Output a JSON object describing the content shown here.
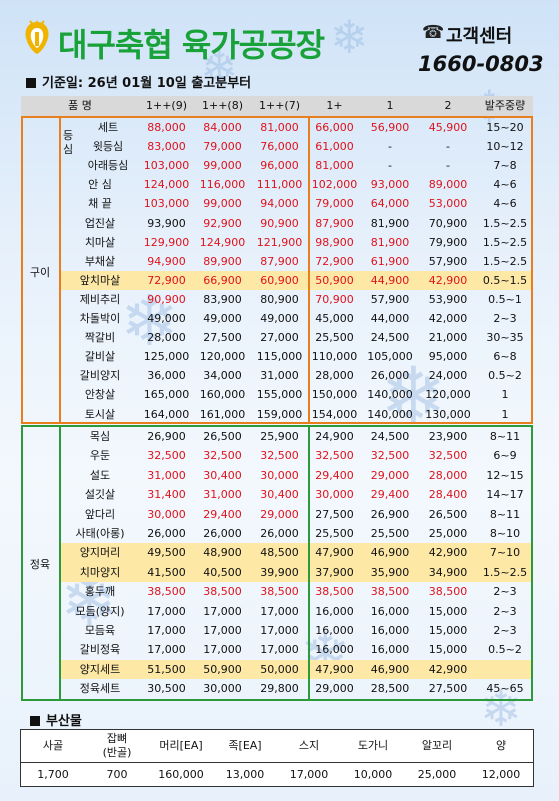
{
  "header": {
    "title": "대구축협 육가공공장",
    "customer_center_label": "고객센터",
    "phone": "1660-0803",
    "date_line": "기준일: 26년 01월 10일 출고분부터",
    "brand_color": "#1aa23a",
    "logo_color": "#f0b400"
  },
  "table": {
    "columns": [
      "품  명",
      "1++(9)",
      "1++(8)",
      "1++(7)",
      "1+",
      "1",
      "2",
      "발주중량"
    ],
    "groups": {
      "gui": "구이",
      "jeong": "정육",
      "sub": "등심"
    },
    "gui_rows": [
      {
        "name": "세트",
        "vals": [
          "88,000",
          "84,000",
          "81,000",
          "66,000",
          "56,900",
          "45,900"
        ],
        "weight": "15~20",
        "red": [
          1,
          1,
          1,
          1,
          1,
          1
        ],
        "hl": false
      },
      {
        "name": "윗등심",
        "vals": [
          "83,000",
          "79,000",
          "76,000",
          "61,000",
          "-",
          "-"
        ],
        "weight": "10~12",
        "red": [
          1,
          1,
          1,
          1,
          0,
          0
        ],
        "hl": false
      },
      {
        "name": "아래등심",
        "vals": [
          "103,000",
          "99,000",
          "96,000",
          "81,000",
          "-",
          "-"
        ],
        "weight": "7~8",
        "red": [
          1,
          1,
          1,
          1,
          0,
          0
        ],
        "hl": false
      },
      {
        "name": "안  심",
        "vals": [
          "124,000",
          "116,000",
          "111,000",
          "102,000",
          "93,000",
          "89,000"
        ],
        "weight": "4~6",
        "red": [
          1,
          1,
          1,
          1,
          1,
          1
        ],
        "hl": false
      },
      {
        "name": "채  끝",
        "vals": [
          "103,000",
          "99,000",
          "94,000",
          "79,000",
          "64,000",
          "53,000"
        ],
        "weight": "4~6",
        "red": [
          1,
          1,
          1,
          1,
          1,
          1
        ],
        "hl": false
      },
      {
        "name": "업진살",
        "vals": [
          "93,900",
          "92,900",
          "90,900",
          "87,900",
          "81,900",
          "70,900"
        ],
        "weight": "1.5~2.5",
        "red": [
          0,
          1,
          1,
          1,
          0,
          0
        ],
        "hl": false
      },
      {
        "name": "치마살",
        "vals": [
          "129,900",
          "124,900",
          "121,900",
          "98,900",
          "81,900",
          "79,900"
        ],
        "weight": "1.5~2.5",
        "red": [
          1,
          1,
          1,
          1,
          1,
          0
        ],
        "hl": false
      },
      {
        "name": "부채살",
        "vals": [
          "94,900",
          "89,900",
          "87,900",
          "72,900",
          "61,900",
          "57,900"
        ],
        "weight": "1.5~2.5",
        "red": [
          1,
          1,
          1,
          1,
          1,
          0
        ],
        "hl": false
      },
      {
        "name": "앞치마살",
        "vals": [
          "72,900",
          "66,900",
          "60,900",
          "50,900",
          "44,900",
          "42,900"
        ],
        "weight": "0.5~1.5",
        "red": [
          1,
          1,
          1,
          1,
          1,
          1
        ],
        "hl": true
      },
      {
        "name": "제비추리",
        "vals": [
          "90,900",
          "83,900",
          "80,900",
          "70,900",
          "57,900",
          "53,900"
        ],
        "weight": "0.5~1",
        "red": [
          1,
          0,
          0,
          1,
          0,
          0
        ],
        "hl": false
      },
      {
        "name": "차돌박이",
        "vals": [
          "49,000",
          "49,000",
          "49,000",
          "45,000",
          "44,000",
          "42,000"
        ],
        "weight": "2~3",
        "red": [
          0,
          0,
          0,
          0,
          0,
          0
        ],
        "hl": false
      },
      {
        "name": "짝갈비",
        "vals": [
          "28,000",
          "27,500",
          "27,000",
          "25,500",
          "24,500",
          "21,000"
        ],
        "weight": "30~35",
        "red": [
          0,
          0,
          0,
          0,
          0,
          0
        ],
        "hl": false
      },
      {
        "name": "갈비살",
        "vals": [
          "125,000",
          "120,000",
          "115,000",
          "110,000",
          "105,000",
          "95,000"
        ],
        "weight": "6~8",
        "red": [
          0,
          0,
          0,
          0,
          0,
          0
        ],
        "hl": false
      },
      {
        "name": "갈비양지",
        "vals": [
          "36,000",
          "34,000",
          "31,000",
          "28,000",
          "26,000",
          "24,000"
        ],
        "weight": "0.5~2",
        "red": [
          0,
          0,
          0,
          0,
          0,
          0
        ],
        "hl": false
      },
      {
        "name": "안창살",
        "vals": [
          "165,000",
          "160,000",
          "155,000",
          "150,000",
          "140,000",
          "120,000"
        ],
        "weight": "1",
        "red": [
          0,
          0,
          0,
          0,
          0,
          0
        ],
        "hl": false
      },
      {
        "name": "토시살",
        "vals": [
          "164,000",
          "161,000",
          "159,000",
          "154,000",
          "140,000",
          "130,000"
        ],
        "weight": "1",
        "red": [
          0,
          0,
          0,
          0,
          0,
          0
        ],
        "hl": false
      }
    ],
    "jeong_rows": [
      {
        "name": "목심",
        "vals": [
          "26,900",
          "26,500",
          "25,900",
          "24,900",
          "24,500",
          "23,900"
        ],
        "weight": "8~11",
        "red": [
          0,
          0,
          0,
          0,
          0,
          0
        ],
        "hl": false
      },
      {
        "name": "우둔",
        "vals": [
          "32,500",
          "32,500",
          "32,500",
          "32,500",
          "32,500",
          "32,500"
        ],
        "weight": "6~9",
        "red": [
          1,
          1,
          1,
          1,
          1,
          1
        ],
        "hl": false
      },
      {
        "name": "설도",
        "vals": [
          "31,000",
          "30,400",
          "30,000",
          "29,400",
          "29,000",
          "28,000"
        ],
        "weight": "12~15",
        "red": [
          1,
          1,
          1,
          1,
          1,
          1
        ],
        "hl": false
      },
      {
        "name": "설깃살",
        "vals": [
          "31,400",
          "31,000",
          "30,400",
          "30,000",
          "29,400",
          "28,400"
        ],
        "weight": "14~17",
        "red": [
          1,
          1,
          1,
          1,
          1,
          1
        ],
        "hl": false
      },
      {
        "name": "앞다리",
        "vals": [
          "30,000",
          "29,400",
          "29,000",
          "27,500",
          "26,900",
          "26,500"
        ],
        "weight": "8~11",
        "red": [
          1,
          1,
          1,
          0,
          0,
          0
        ],
        "hl": false
      },
      {
        "name": "사태(아롱)",
        "vals": [
          "26,000",
          "26,000",
          "26,000",
          "25,500",
          "25,500",
          "25,000"
        ],
        "weight": "8~10",
        "red": [
          0,
          0,
          0,
          0,
          0,
          0
        ],
        "hl": false
      },
      {
        "name": "양지머리",
        "vals": [
          "49,500",
          "48,900",
          "48,500",
          "47,900",
          "46,900",
          "42,900"
        ],
        "weight": "7~10",
        "red": [
          0,
          0,
          0,
          0,
          0,
          0
        ],
        "hl": true
      },
      {
        "name": "치마양지",
        "vals": [
          "41,500",
          "40,500",
          "39,900",
          "37,900",
          "35,900",
          "34,900"
        ],
        "weight": "1.5~2.5",
        "red": [
          0,
          0,
          0,
          0,
          0,
          0
        ],
        "hl": true
      },
      {
        "name": "홍두깨",
        "vals": [
          "38,500",
          "38,500",
          "38,500",
          "38,500",
          "38,500",
          "38,500"
        ],
        "weight": "2~3",
        "red": [
          1,
          1,
          1,
          1,
          1,
          1
        ],
        "hl": false
      },
      {
        "name": "모듬(양지)",
        "vals": [
          "17,000",
          "17,000",
          "17,000",
          "16,000",
          "16,000",
          "15,000"
        ],
        "weight": "2~3",
        "red": [
          0,
          0,
          0,
          0,
          0,
          0
        ],
        "hl": false
      },
      {
        "name": "모듬육",
        "vals": [
          "17,000",
          "17,000",
          "17,000",
          "16,000",
          "16,000",
          "15,000"
        ],
        "weight": "2~3",
        "red": [
          0,
          0,
          0,
          0,
          0,
          0
        ],
        "hl": false
      },
      {
        "name": "갈비정육",
        "vals": [
          "17,000",
          "17,000",
          "17,000",
          "16,000",
          "16,000",
          "15,000"
        ],
        "weight": "0.5~2",
        "red": [
          0,
          0,
          0,
          0,
          0,
          0
        ],
        "hl": false
      },
      {
        "name": "양지세트",
        "vals": [
          "51,500",
          "50,900",
          "50,000",
          "47,900",
          "46,900",
          "42,900"
        ],
        "weight": "",
        "red": [
          0,
          0,
          0,
          0,
          0,
          0
        ],
        "hl": true
      },
      {
        "name": "정육세트",
        "vals": [
          "30,500",
          "30,000",
          "29,800",
          "29,000",
          "28,500",
          "27,500"
        ],
        "weight": "45~65",
        "red": [
          0,
          0,
          0,
          0,
          0,
          0
        ],
        "hl": false
      }
    ]
  },
  "byproducts": {
    "title": "부산물",
    "headers": [
      "사골",
      "잡뼈\n(반골)",
      "머리[EA]",
      "족[EA]",
      "스지",
      "도가니",
      "알꼬리",
      "양"
    ],
    "values": [
      "1,700",
      "700",
      "160,000",
      "13,000",
      "17,000",
      "10,000",
      "25,000",
      "12,000"
    ]
  },
  "colors": {
    "price_red": "#e0121b",
    "gui_border": "#e87e1c",
    "jeong_border": "#2a9a3a",
    "highlight": "#fde8a6"
  }
}
